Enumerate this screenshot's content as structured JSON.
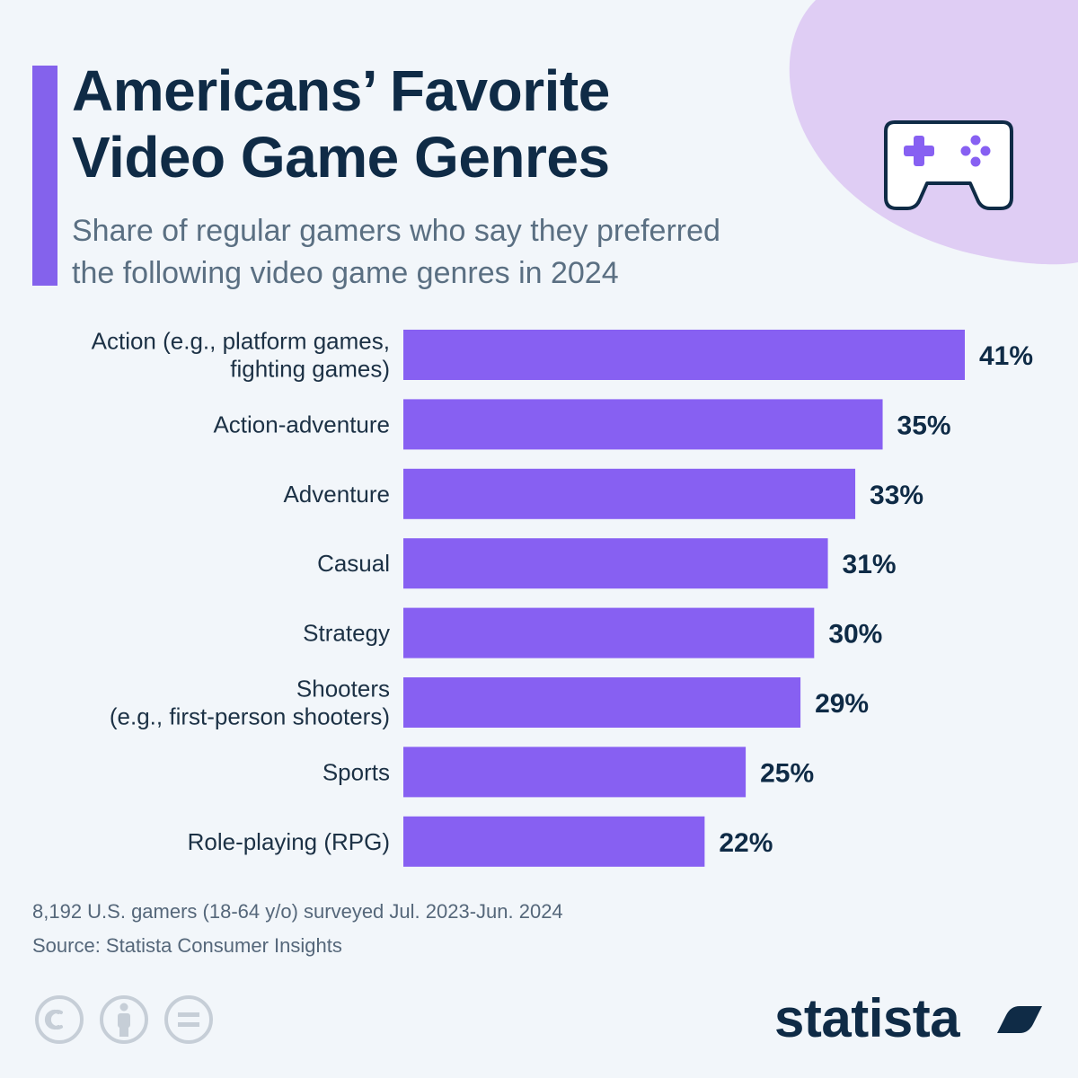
{
  "header": {
    "title_line1": "Americans’ Favorite",
    "title_line2": "Video Game Genres",
    "subtitle_line1": "Share of regular gamers who say they preferred",
    "subtitle_line2": "the following video game genres in 2024"
  },
  "chart_data": {
    "type": "bar",
    "orientation": "horizontal",
    "categories": [
      [
        "Action (e.g., platform games,",
        "fighting games)"
      ],
      [
        "Action-adventure"
      ],
      [
        "Adventure"
      ],
      [
        "Casual"
      ],
      [
        "Strategy"
      ],
      [
        "Shooters",
        "(e.g., first-person shooters)"
      ],
      [
        "Sports"
      ],
      [
        "Role-playing (RPG)"
      ]
    ],
    "values": [
      41,
      35,
      33,
      31,
      30,
      29,
      25,
      22
    ],
    "value_labels": [
      "41%",
      "35%",
      "33%",
      "31%",
      "30%",
      "29%",
      "25%",
      "22%"
    ],
    "unit": "%",
    "xlim": [
      0,
      41
    ],
    "grid": false,
    "legend": "none"
  },
  "footer": {
    "survey_note": "8,192 U.S. gamers (18-64 y/o) surveyed Jul. 2023-Jun. 2024",
    "source": "Source: Statista Consumer Insights",
    "brand": "statista"
  },
  "colors": {
    "bar": "#8760f2",
    "accent": "#8462ec",
    "blob": "#dfcdf4",
    "title": "#0f2b46",
    "label": "#1c3145",
    "background": "#f2f6fa",
    "cc_icon": "#c6ced7"
  },
  "icons": {
    "decoration": "gamepad-icon",
    "license": [
      "creative-commons-icon",
      "attribution-icon",
      "no-derivatives-icon"
    ],
    "brand": "statista-logo-mark"
  }
}
